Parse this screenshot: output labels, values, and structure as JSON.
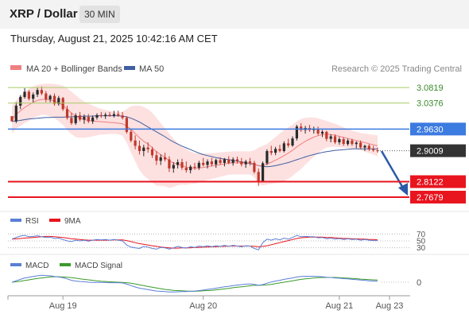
{
  "header": {
    "title": "XRP / Dollar",
    "timeframe": "30 MIN"
  },
  "datetime": "Thursday, August 21, 2025 10:42:16 AM CET",
  "legend": {
    "ma20_bb": "MA 20 + Bollinger Bands",
    "ma50": "MA 50",
    "credit": "Research © 2025 Trading Central"
  },
  "rsi_legend": {
    "rsi": "RSI",
    "ma": "9MA"
  },
  "macd_legend": {
    "macd": "MACD",
    "signal": "MACD Signal"
  },
  "colors": {
    "ma20": "#f08080",
    "ma50": "#3f5fa0",
    "bb_fill": "#fde0e0",
    "up": "#2a2a2a",
    "down": "#c0392b",
    "resistance": "#a9cc66",
    "pivot": "#3c7be0",
    "support": "#e8141e",
    "current": "#333333",
    "rsi": "#5b7fd6",
    "rsi_ma": "#e8141e",
    "macd": "#5b7fd6",
    "macd_signal": "#3a9a2a"
  },
  "chart_data": {
    "type": "candlestick",
    "x_ticks": [
      "Aug 19",
      "Aug 20",
      "Aug 21",
      "Aug 23"
    ],
    "price_range": [
      2.745,
      3.105
    ],
    "levels": [
      {
        "value": "3.0819",
        "kind": "resistance"
      },
      {
        "value": "3.0376",
        "kind": "resistance"
      },
      {
        "value": "2.9630",
        "kind": "pivot"
      },
      {
        "value": "2.9009",
        "kind": "current"
      },
      {
        "value": "2.8122",
        "kind": "support"
      },
      {
        "value": "2.7679",
        "kind": "support"
      }
    ],
    "candles": [
      [
        3.0,
        3.0,
        2.985,
        2.985
      ],
      [
        2.985,
        3.04,
        2.98,
        3.03
      ],
      [
        3.03,
        3.06,
        3.02,
        3.055
      ],
      [
        3.055,
        3.08,
        3.05,
        3.07
      ],
      [
        3.07,
        3.075,
        3.045,
        3.05
      ],
      [
        3.05,
        3.068,
        3.04,
        3.062
      ],
      [
        3.062,
        3.082,
        3.055,
        3.075
      ],
      [
        3.075,
        3.085,
        3.06,
        3.065
      ],
      [
        3.065,
        3.072,
        3.04,
        3.048
      ],
      [
        3.048,
        3.062,
        3.04,
        3.058
      ],
      [
        3.058,
        3.065,
        3.03,
        3.035
      ],
      [
        3.035,
        3.058,
        3.03,
        3.052
      ],
      [
        3.052,
        3.055,
        3.015,
        3.02
      ],
      [
        3.02,
        3.03,
        2.99,
        2.995
      ],
      [
        2.995,
        3.01,
        2.975,
        2.98
      ],
      [
        2.98,
        3.008,
        2.975,
        3.002
      ],
      [
        3.002,
        3.012,
        2.985,
        2.99
      ],
      [
        2.99,
        3.005,
        2.978,
        2.998
      ],
      [
        2.998,
        3.006,
        2.98,
        2.985
      ],
      [
        2.985,
        3.002,
        2.978,
        2.996
      ],
      [
        2.996,
        3.008,
        2.99,
        3.003
      ],
      [
        3.003,
        3.012,
        2.995,
        3.0
      ],
      [
        3.0,
        3.01,
        2.992,
        3.004
      ],
      [
        3.004,
        3.012,
        2.998,
        3.001
      ],
      [
        3.001,
        3.015,
        2.996,
        3.006
      ],
      [
        3.006,
        3.016,
        2.998,
        3.002
      ],
      [
        3.002,
        3.012,
        2.99,
        2.995
      ],
      [
        2.995,
        3.0,
        2.95,
        2.955
      ],
      [
        2.955,
        2.962,
        2.925,
        2.93
      ],
      [
        2.93,
        2.945,
        2.905,
        2.915
      ],
      [
        2.915,
        2.93,
        2.89,
        2.9
      ],
      [
        2.9,
        2.918,
        2.885,
        2.91
      ],
      [
        2.91,
        2.925,
        2.895,
        2.905
      ],
      [
        2.905,
        2.912,
        2.88,
        2.888
      ],
      [
        2.888,
        2.9,
        2.86,
        2.872
      ],
      [
        2.872,
        2.89,
        2.86,
        2.882
      ],
      [
        2.882,
        2.895,
        2.87,
        2.876
      ],
      [
        2.876,
        2.885,
        2.84,
        2.85
      ],
      [
        2.85,
        2.868,
        2.838,
        2.86
      ],
      [
        2.86,
        2.876,
        2.85,
        2.868
      ],
      [
        2.868,
        2.878,
        2.846,
        2.852
      ],
      [
        2.852,
        2.87,
        2.838,
        2.845
      ],
      [
        2.845,
        2.86,
        2.836,
        2.855
      ],
      [
        2.855,
        2.866,
        2.846,
        2.852
      ],
      [
        2.852,
        2.872,
        2.846,
        2.866
      ],
      [
        2.866,
        2.88,
        2.856,
        2.86
      ],
      [
        2.86,
        2.876,
        2.85,
        2.87
      ],
      [
        2.87,
        2.88,
        2.856,
        2.862
      ],
      [
        2.862,
        2.878,
        2.852,
        2.874
      ],
      [
        2.874,
        2.882,
        2.86,
        2.866
      ],
      [
        2.866,
        2.88,
        2.856,
        2.876
      ],
      [
        2.876,
        2.885,
        2.862,
        2.866
      ],
      [
        2.866,
        2.882,
        2.858,
        2.876
      ],
      [
        2.876,
        2.884,
        2.864,
        2.87
      ],
      [
        2.87,
        2.88,
        2.856,
        2.862
      ],
      [
        2.862,
        2.875,
        2.852,
        2.87
      ],
      [
        2.87,
        2.88,
        2.858,
        2.866
      ],
      [
        2.866,
        2.872,
        2.835,
        2.84
      ],
      [
        2.84,
        2.85,
        2.8,
        2.812
      ],
      [
        2.812,
        2.87,
        2.81,
        2.865
      ],
      [
        2.865,
        2.905,
        2.86,
        2.9
      ],
      [
        2.9,
        2.915,
        2.888,
        2.895
      ],
      [
        2.895,
        2.912,
        2.888,
        2.906
      ],
      [
        2.906,
        2.918,
        2.896,
        2.9
      ],
      [
        2.9,
        2.928,
        2.896,
        2.922
      ],
      [
        2.922,
        2.935,
        2.91,
        2.916
      ],
      [
        2.916,
        2.942,
        2.912,
        2.936
      ],
      [
        2.936,
        2.975,
        2.93,
        2.97
      ],
      [
        2.97,
        2.98,
        2.955,
        2.96
      ],
      [
        2.96,
        2.972,
        2.95,
        2.966
      ],
      [
        2.966,
        2.975,
        2.955,
        2.96
      ],
      [
        2.96,
        2.97,
        2.95,
        2.964
      ],
      [
        2.964,
        2.97,
        2.945,
        2.95
      ],
      [
        2.95,
        2.96,
        2.94,
        2.955
      ],
      [
        2.955,
        2.958,
        2.928,
        2.935
      ],
      [
        2.935,
        2.948,
        2.925,
        2.942
      ],
      [
        2.942,
        2.948,
        2.92,
        2.925
      ],
      [
        2.925,
        2.94,
        2.918,
        2.934
      ],
      [
        2.934,
        2.94,
        2.915,
        2.92
      ],
      [
        2.92,
        2.935,
        2.915,
        2.93
      ],
      [
        2.93,
        2.935,
        2.915,
        2.92
      ],
      [
        2.92,
        2.928,
        2.908,
        2.924
      ],
      [
        2.924,
        2.93,
        2.905,
        2.91
      ],
      [
        2.91,
        2.918,
        2.9,
        2.915
      ],
      [
        2.915,
        2.92,
        2.9,
        2.905
      ],
      [
        2.905,
        2.915,
        2.898,
        2.902
      ],
      [
        2.902,
        2.91,
        2.895,
        2.901
      ]
    ],
    "ma20": [
      2.99,
      3.005,
      3.015,
      3.025,
      3.032,
      3.04,
      3.045,
      3.048,
      3.048,
      3.046,
      3.043,
      3.038,
      3.031,
      3.02,
      3.009,
      3.0,
      2.994,
      2.99,
      2.988,
      2.986,
      2.985,
      2.984,
      2.983,
      2.982,
      2.981,
      2.98,
      2.978,
      2.972,
      2.962,
      2.95,
      2.938,
      2.928,
      2.92,
      2.91,
      2.898,
      2.89,
      2.882,
      2.872,
      2.866,
      2.862,
      2.858,
      2.854,
      2.852,
      2.85,
      2.851,
      2.853,
      2.855,
      2.857,
      2.859,
      2.861,
      2.863,
      2.865,
      2.866,
      2.866,
      2.866,
      2.866,
      2.866,
      2.863,
      2.858,
      2.858,
      2.862,
      2.868,
      2.874,
      2.88,
      2.887,
      2.894,
      2.902,
      2.912,
      2.92,
      2.928,
      2.934,
      2.94,
      2.944,
      2.947,
      2.948,
      2.947,
      2.945,
      2.942,
      2.939,
      2.936,
      2.933,
      2.93,
      2.927,
      2.924,
      2.921,
      2.918,
      2.915
    ],
    "bb_upper": [
      3.03,
      3.045,
      3.058,
      3.07,
      3.078,
      3.085,
      3.09,
      3.092,
      3.093,
      3.093,
      3.092,
      3.09,
      3.087,
      3.08,
      3.07,
      3.06,
      3.05,
      3.042,
      3.036,
      3.03,
      3.025,
      3.021,
      3.018,
      3.015,
      3.013,
      3.012,
      3.012,
      3.02,
      3.028,
      3.03,
      3.03,
      3.026,
      3.02,
      3.01,
      2.995,
      2.98,
      2.965,
      2.95,
      2.935,
      2.922,
      2.912,
      2.905,
      2.898,
      2.894,
      2.892,
      2.892,
      2.893,
      2.894,
      2.895,
      2.896,
      2.897,
      2.898,
      2.899,
      2.899,
      2.899,
      2.899,
      2.899,
      2.902,
      2.91,
      2.915,
      2.92,
      2.93,
      2.94,
      2.95,
      2.96,
      2.968,
      2.975,
      2.985,
      2.992,
      2.995,
      2.996,
      2.996,
      2.994,
      2.99,
      2.986,
      2.982,
      2.978,
      2.973,
      2.968,
      2.963,
      2.958,
      2.955,
      2.952,
      2.95,
      2.948,
      2.946,
      2.945
    ],
    "bb_lower": [
      2.95,
      2.965,
      2.972,
      2.98,
      2.986,
      2.995,
      3.0,
      3.004,
      3.003,
      2.999,
      2.994,
      2.986,
      2.975,
      2.96,
      2.948,
      2.94,
      2.938,
      2.938,
      2.94,
      2.942,
      2.945,
      2.947,
      2.948,
      2.949,
      2.949,
      2.948,
      2.944,
      2.924,
      2.896,
      2.87,
      2.846,
      2.83,
      2.82,
      2.81,
      2.801,
      2.8,
      2.799,
      2.794,
      2.797,
      2.802,
      2.804,
      2.803,
      2.806,
      2.806,
      2.81,
      2.814,
      2.817,
      2.82,
      2.823,
      2.826,
      2.829,
      2.832,
      2.833,
      2.833,
      2.833,
      2.833,
      2.833,
      2.824,
      2.806,
      2.801,
      2.804,
      2.806,
      2.808,
      2.81,
      2.814,
      2.82,
      2.829,
      2.839,
      2.848,
      2.861,
      2.872,
      2.884,
      2.894,
      2.904,
      2.91,
      2.912,
      2.912,
      2.911,
      2.91,
      2.909,
      2.908,
      2.905,
      2.902,
      2.898,
      2.894,
      2.89,
      2.885
    ],
    "ma50": [
      2.985,
      2.986,
      2.988,
      2.99,
      2.992,
      2.993,
      2.994,
      2.995,
      2.996,
      2.996,
      2.997,
      2.997,
      2.997,
      2.998,
      2.998,
      2.999,
      2.999,
      3.0,
      3.0,
      3.0,
      3.001,
      3.001,
      3.001,
      3.001,
      3.001,
      3.001,
      3.0,
      2.998,
      2.994,
      2.989,
      2.983,
      2.976,
      2.969,
      2.962,
      2.955,
      2.948,
      2.941,
      2.933,
      2.926,
      2.92,
      2.914,
      2.909,
      2.904,
      2.899,
      2.894,
      2.89,
      2.887,
      2.884,
      2.881,
      2.879,
      2.877,
      2.875,
      2.873,
      2.871,
      2.869,
      2.866,
      2.864,
      2.862,
      2.858,
      2.856,
      2.855,
      2.856,
      2.858,
      2.861,
      2.864,
      2.867,
      2.871,
      2.875,
      2.879,
      2.883,
      2.887,
      2.89,
      2.893,
      2.896,
      2.898,
      2.9,
      2.902,
      2.903,
      2.904,
      2.905,
      2.906,
      2.906,
      2.906,
      2.906,
      2.906,
      2.906,
      2.906
    ],
    "rsi": {
      "levels": [
        "70",
        "50",
        "30"
      ],
      "range": [
        20,
        80
      ],
      "rsi": [
        55,
        60,
        64,
        66,
        62,
        63,
        65,
        62,
        60,
        61,
        57,
        58,
        54,
        50,
        48,
        52,
        50,
        52,
        49,
        52,
        54,
        53,
        54,
        52,
        54,
        52,
        50,
        38,
        32,
        30,
        28,
        34,
        32,
        28,
        26,
        31,
        30,
        26,
        30,
        34,
        31,
        29,
        33,
        31,
        35,
        33,
        36,
        33,
        36,
        34,
        37,
        34,
        37,
        35,
        33,
        36,
        35,
        28,
        24,
        45,
        55,
        52,
        56,
        53,
        58,
        55,
        60,
        66,
        62,
        63,
        62,
        62,
        59,
        60,
        56,
        58,
        55,
        57,
        54,
        56,
        54,
        55,
        52,
        54,
        52,
        51,
        51
      ],
      "ma9": [
        55,
        56,
        57,
        58,
        59,
        60,
        61,
        62,
        63,
        63,
        62,
        61,
        60,
        58,
        56,
        55,
        54,
        53,
        52,
        52,
        52,
        52,
        52,
        52,
        53,
        53,
        53,
        51,
        48,
        45,
        42,
        40,
        38,
        36,
        34,
        32,
        31,
        30,
        29,
        29,
        30,
        30,
        30,
        31,
        31,
        32,
        32,
        33,
        33,
        34,
        34,
        35,
        35,
        35,
        35,
        35,
        35,
        34,
        33,
        34,
        36,
        39,
        42,
        45,
        48,
        51,
        54,
        57,
        59,
        60,
        61,
        61,
        61,
        61,
        60,
        60,
        59,
        58,
        57,
        57,
        56,
        56,
        55,
        55,
        54,
        54,
        53
      ]
    },
    "macd": {
      "zero_label": "0",
      "range": [
        -0.05,
        0.05
      ],
      "macd": [
        0.0,
        0.006,
        0.012,
        0.018,
        0.021,
        0.024,
        0.027,
        0.029,
        0.028,
        0.027,
        0.024,
        0.022,
        0.019,
        0.014,
        0.008,
        0.005,
        0.003,
        0.002,
        0.0,
        -0.001,
        -0.001,
        -0.001,
        -0.001,
        -0.002,
        -0.002,
        -0.002,
        -0.003,
        -0.008,
        -0.014,
        -0.02,
        -0.025,
        -0.028,
        -0.031,
        -0.034,
        -0.037,
        -0.038,
        -0.039,
        -0.041,
        -0.041,
        -0.04,
        -0.039,
        -0.039,
        -0.038,
        -0.037,
        -0.035,
        -0.033,
        -0.03,
        -0.028,
        -0.025,
        -0.022,
        -0.019,
        -0.017,
        -0.014,
        -0.012,
        -0.01,
        -0.008,
        -0.007,
        -0.009,
        -0.013,
        -0.01,
        -0.004,
        0.001,
        0.005,
        0.008,
        0.012,
        0.015,
        0.018,
        0.022,
        0.024,
        0.025,
        0.025,
        0.025,
        0.024,
        0.023,
        0.021,
        0.02,
        0.018,
        0.017,
        0.015,
        0.014,
        0.012,
        0.011,
        0.009,
        0.008,
        0.006,
        0.005,
        0.004
      ],
      "signal": [
        0.0,
        0.002,
        0.004,
        0.007,
        0.01,
        0.013,
        0.016,
        0.018,
        0.02,
        0.022,
        0.023,
        0.023,
        0.022,
        0.021,
        0.019,
        0.017,
        0.014,
        0.012,
        0.01,
        0.008,
        0.006,
        0.004,
        0.003,
        0.002,
        0.001,
        0.0,
        -0.001,
        -0.002,
        -0.004,
        -0.007,
        -0.011,
        -0.014,
        -0.018,
        -0.021,
        -0.024,
        -0.027,
        -0.03,
        -0.032,
        -0.034,
        -0.035,
        -0.036,
        -0.037,
        -0.038,
        -0.038,
        -0.037,
        -0.036,
        -0.035,
        -0.034,
        -0.032,
        -0.03,
        -0.028,
        -0.026,
        -0.023,
        -0.021,
        -0.019,
        -0.017,
        -0.015,
        -0.013,
        -0.013,
        -0.012,
        -0.011,
        -0.009,
        -0.006,
        -0.003,
        0.0,
        0.003,
        0.006,
        0.009,
        0.012,
        0.014,
        0.016,
        0.018,
        0.019,
        0.02,
        0.02,
        0.02,
        0.02,
        0.019,
        0.018,
        0.017,
        0.016,
        0.015,
        0.013,
        0.012,
        0.011,
        0.01,
        0.009
      ]
    }
  }
}
